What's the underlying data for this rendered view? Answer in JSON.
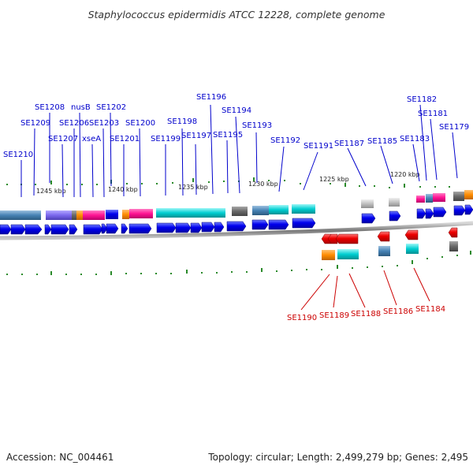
{
  "title": "Staphylococcus epidermidis ATCC 12228, complete genome",
  "footer": {
    "accession": "Accession: NC_004461",
    "summary": "Topology: circular; Length: 2,499,279 bp; Genes: 2,495"
  },
  "scale_labels": [
    "1245 kbp",
    "1240 kbp",
    "1235 kbp",
    "1230 kbp",
    "1225 kbp",
    "1220 kbp"
  ],
  "top_labels": [
    "SE1210",
    "SE1209",
    "SE1208",
    "SE1207",
    "SE1206",
    "nusB",
    "xseA",
    "SE1203",
    "SE1202",
    "SE1201",
    "SE1200",
    "SE1199",
    "SE1198",
    "SE1197",
    "SE1196",
    "SE1195",
    "SE1194",
    "SE1193",
    "SE1192",
    "SE1191",
    "SE1187",
    "SE1185",
    "SE1183",
    "SE1182",
    "SE1181",
    "SE1179"
  ],
  "bottom_labels": [
    "SE1190",
    "SE1189",
    "SE1188",
    "SE1186",
    "SE1184"
  ],
  "colors": {
    "forward_gene": "#0000ee",
    "reverse_gene": "#ee0000",
    "backbone": "#888888",
    "ticks": "#2a8a2a",
    "cog_steel": "#4682b4",
    "cog_purple": "#7b68ee",
    "cog_orange": "#ff8c00",
    "cog_pink": "#ff1493",
    "cog_cyan": "#00ced1",
    "cog_gray": "#696969",
    "cog_lightgray": "#c0c0c0"
  }
}
